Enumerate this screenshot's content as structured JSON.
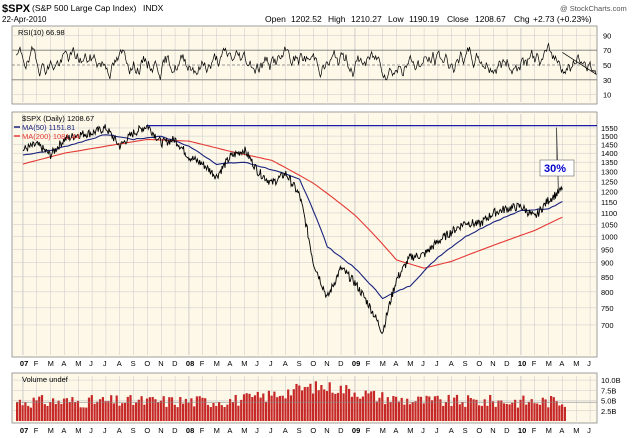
{
  "header": {
    "symbol": "$SPX",
    "name": "(S&P 500 Large Cap Index)",
    "exchange": "INDX",
    "watermark": "@ StockCharts.com",
    "date": "22-Apr-2010",
    "open_label": "Open",
    "open": "1202.52",
    "high_label": "High",
    "high": "1210.27",
    "low_label": "Low",
    "low": "1190.19",
    "close_label": "Close",
    "close": "1208.67",
    "chg_label": "Chg",
    "chg": "+2.73 (+0.23%)"
  },
  "colors": {
    "panel_bg": "#fdf8e8",
    "price": "#000000",
    "ma50": "#1a237e",
    "ma200": "#e53935",
    "hline": "#1a1aa8",
    "annotation": "#0000cc",
    "volume": "#c62828",
    "grid": "#c8c8c8"
  },
  "chart_data": [
    {
      "type": "line",
      "panel": "rsi",
      "legend": "RSI(10) 66.98",
      "ylim": [
        0,
        100
      ],
      "y_ticks": [
        10,
        30,
        50,
        70,
        90
      ],
      "reference_lines": [
        30,
        50,
        70
      ],
      "last": 66.98
    },
    {
      "type": "line",
      "panel": "price",
      "legend_title": "$SPX (Daily) 1208.67",
      "scale": "log",
      "ylim": [
        620,
        1640
      ],
      "y_ticks": [
        700,
        750,
        800,
        850,
        900,
        950,
        1000,
        1050,
        1100,
        1150,
        1200,
        1250,
        1300,
        1350,
        1400,
        1450,
        1500,
        1550
      ],
      "x_tick_labels": [
        "07",
        "F",
        "M",
        "A",
        "M",
        "J",
        "J",
        "A",
        "S",
        "O",
        "N",
        "D",
        "08",
        "F",
        "M",
        "A",
        "M",
        "J",
        "J",
        "A",
        "S",
        "O",
        "N",
        "D",
        "09",
        "F",
        "M",
        "A",
        "M",
        "J",
        "J",
        "A",
        "S",
        "O",
        "N",
        "D",
        "10",
        "F",
        "M",
        "A",
        "M",
        "J"
      ],
      "series": [
        {
          "name": "$SPX (Daily) 1208.67",
          "points": [
            [
              "2007-01",
              1420
            ],
            [
              "2007-02",
              1450
            ],
            [
              "2007-03",
              1390
            ],
            [
              "2007-04",
              1480
            ],
            [
              "2007-05",
              1510
            ],
            [
              "2007-06",
              1520
            ],
            [
              "2007-07",
              1550
            ],
            [
              "2007-08",
              1440
            ],
            [
              "2007-09",
              1520
            ],
            [
              "2007-10",
              1565
            ],
            [
              "2007-11",
              1460
            ],
            [
              "2007-12",
              1480
            ],
            [
              "2008-01",
              1380
            ],
            [
              "2008-02",
              1340
            ],
            [
              "2008-03",
              1275
            ],
            [
              "2008-04",
              1380
            ],
            [
              "2008-05",
              1420
            ],
            [
              "2008-06",
              1300
            ],
            [
              "2008-07",
              1240
            ],
            [
              "2008-08",
              1290
            ],
            [
              "2008-09",
              1180
            ],
            [
              "2008-10",
              900
            ],
            [
              "2008-11",
              780
            ],
            [
              "2008-12",
              880
            ],
            [
              "2009-01",
              830
            ],
            [
              "2009-02",
              760
            ],
            [
              "2009-03",
              680
            ],
            [
              "2009-04",
              840
            ],
            [
              "2009-05",
              920
            ],
            [
              "2009-06",
              930
            ],
            [
              "2009-07",
              980
            ],
            [
              "2009-08",
              1020
            ],
            [
              "2009-09",
              1060
            ],
            [
              "2009-10",
              1050
            ],
            [
              "2009-11",
              1100
            ],
            [
              "2009-12",
              1120
            ],
            [
              "2010-01",
              1130
            ],
            [
              "2010-02",
              1080
            ],
            [
              "2010-03",
              1160
            ],
            [
              "2010-04",
              1208.67
            ]
          ]
        },
        {
          "name": "MA(50) 1151.81",
          "points": [
            [
              "2007-01",
              1390
            ],
            [
              "2007-03",
              1415
            ],
            [
              "2007-05",
              1460
            ],
            [
              "2007-07",
              1510
            ],
            [
              "2007-09",
              1480
            ],
            [
              "2007-11",
              1500
            ],
            [
              "2008-01",
              1440
            ],
            [
              "2008-03",
              1340
            ],
            [
              "2008-05",
              1350
            ],
            [
              "2008-07",
              1310
            ],
            [
              "2008-09",
              1260
            ],
            [
              "2008-11",
              960
            ],
            [
              "2009-01",
              880
            ],
            [
              "2009-03",
              780
            ],
            [
              "2009-05",
              820
            ],
            [
              "2009-07",
              920
            ],
            [
              "2009-09",
              1000
            ],
            [
              "2009-11",
              1060
            ],
            [
              "2010-01",
              1110
            ],
            [
              "2010-03",
              1120
            ],
            [
              "2010-04",
              1151.81
            ]
          ]
        },
        {
          "name": "MA(200) 1081.44",
          "points": [
            [
              "2007-01",
              1340
            ],
            [
              "2007-04",
              1400
            ],
            [
              "2007-07",
              1440
            ],
            [
              "2007-10",
              1480
            ],
            [
              "2008-01",
              1470
            ],
            [
              "2008-04",
              1410
            ],
            [
              "2008-07",
              1360
            ],
            [
              "2008-10",
              1240
            ],
            [
              "2009-01",
              1090
            ],
            [
              "2009-04",
              910
            ],
            [
              "2009-06",
              880
            ],
            [
              "2009-08",
              905
            ],
            [
              "2009-10",
              945
            ],
            [
              "2009-12",
              985
            ],
            [
              "2010-02",
              1025
            ],
            [
              "2010-04",
              1081.44
            ]
          ]
        }
      ],
      "horizontal_line": 1565,
      "annotations": [
        {
          "text": "30%"
        }
      ]
    },
    {
      "type": "bar",
      "panel": "volume",
      "legend": "Volume undef",
      "y_tick_labels": [
        "2.5B",
        "5.0B",
        "7.5B",
        "10.0B"
      ],
      "ylim": [
        0,
        11
      ]
    }
  ]
}
